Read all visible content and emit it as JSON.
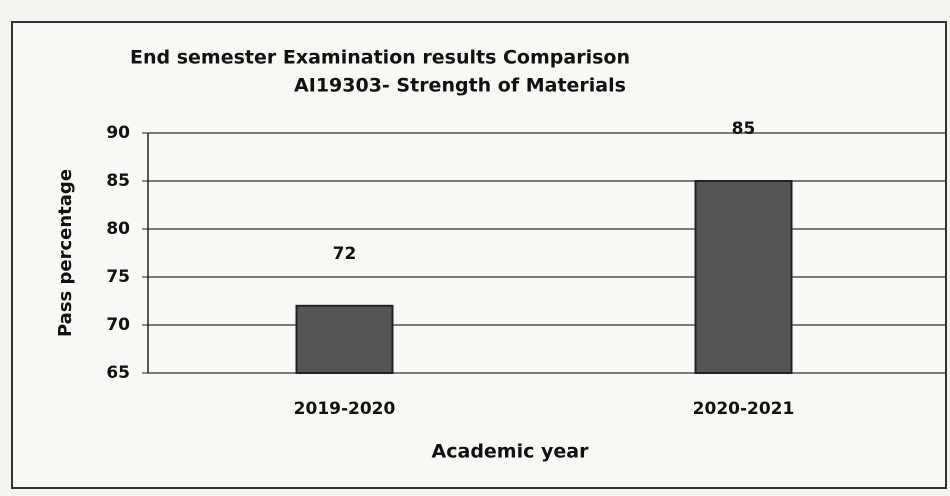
{
  "chart_data": {
    "type": "bar",
    "title": "End semester Examination results Comparison",
    "subtitle": "AI19303- Strength of Materials",
    "categories": [
      "2019-2020",
      "2020-2021"
    ],
    "values": [
      72,
      85
    ],
    "color": "#555555",
    "xlabel": "Academic year",
    "ylabel": "Pass percentage",
    "ylim": [
      65,
      90
    ],
    "yticks": [
      65,
      70,
      75,
      80,
      85,
      90
    ],
    "grid": true
  }
}
